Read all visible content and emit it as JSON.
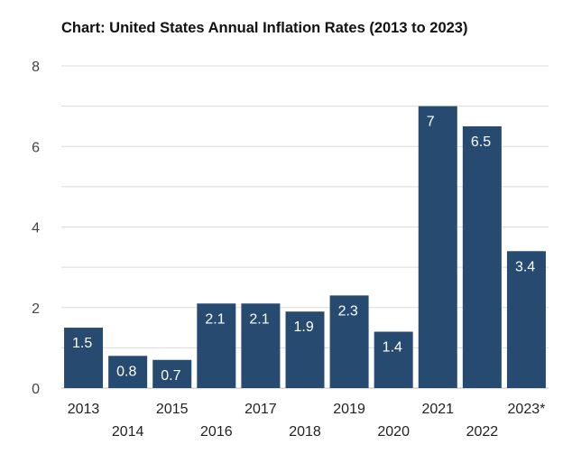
{
  "chart_data": {
    "type": "bar",
    "title": "Chart: United States Annual Inflation Rates (2013 to 2023)",
    "categories": [
      "2013",
      "2014",
      "2015",
      "2016",
      "2017",
      "2018",
      "2019",
      "2020",
      "2021",
      "2022",
      "2023*"
    ],
    "values": [
      1.5,
      0.8,
      0.7,
      2.1,
      2.1,
      1.9,
      2.3,
      1.4,
      7,
      6.5,
      3.4
    ],
    "data_labels": [
      "1.5",
      "0.8",
      "0.7",
      "2.1",
      "2.1",
      "1.9",
      "2.3",
      "1.4",
      "7",
      "6.5",
      "3.4"
    ],
    "yticks": [
      "0",
      "2",
      "4",
      "6",
      "8"
    ],
    "ylim": [
      0,
      8
    ],
    "grid": true,
    "legend": "none",
    "bar_color": "#264a70",
    "grid_color": "#dcdcdc"
  }
}
